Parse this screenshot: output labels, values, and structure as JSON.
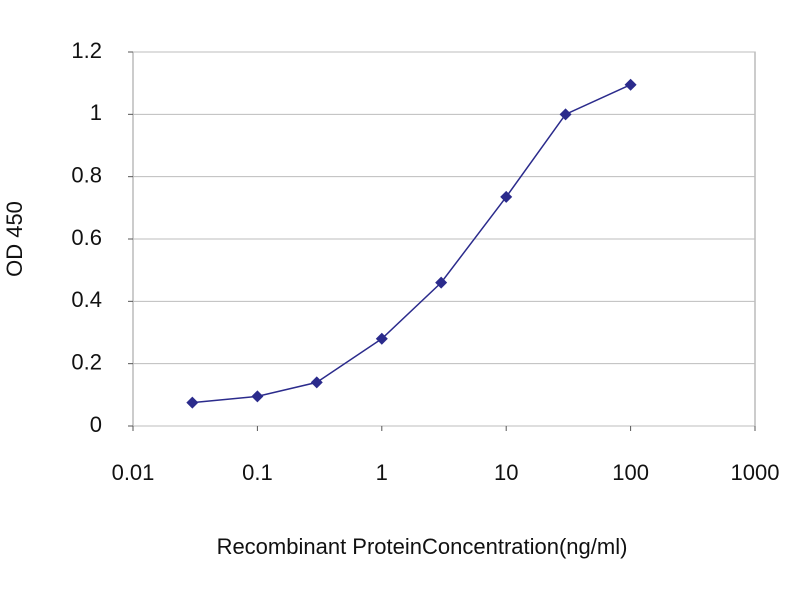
{
  "chart_data": {
    "type": "line",
    "x_label": "Recombinant ProteinConcentration(ng/ml)",
    "y_label": "OD 450",
    "xscale": "log",
    "x": [
      0.03,
      0.1,
      0.3,
      1,
      3,
      10,
      30,
      100
    ],
    "series": [
      {
        "color": "#2b2b8c",
        "values": [
          0.075,
          0.095,
          0.14,
          0.28,
          0.46,
          0.735,
          1.0,
          1.095
        ]
      }
    ],
    "xlim": [
      0.01,
      1000
    ],
    "xticks": [
      0.01,
      0.1,
      1,
      10,
      100,
      1000
    ],
    "ylim": [
      0,
      1.2
    ],
    "yticks": [
      0,
      0.2,
      0.4,
      0.6,
      0.8,
      1,
      1.2
    ],
    "grid": true
  }
}
